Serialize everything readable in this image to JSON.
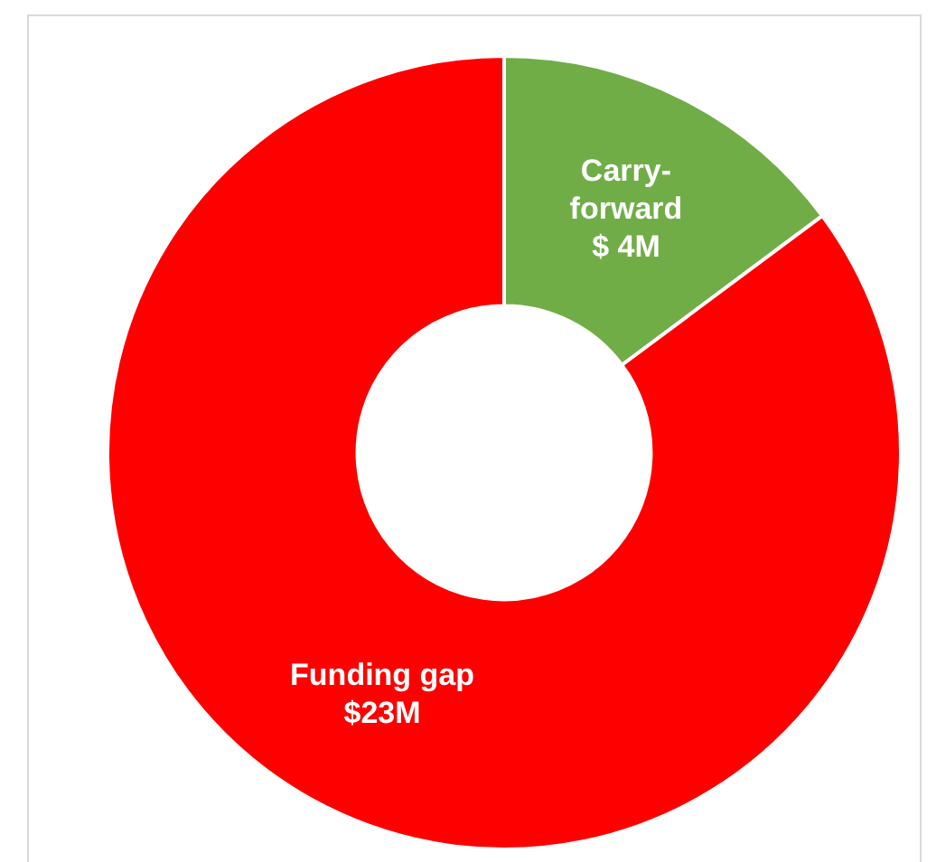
{
  "chart_data": {
    "type": "donut",
    "categories": [
      "Carry-forward",
      "Funding gap"
    ],
    "values": [
      4,
      23
    ],
    "colors": [
      "#70ad47",
      "#ff0000"
    ],
    "value_labels": [
      "$ 4M",
      "$23M"
    ],
    "legend": false
  }
}
